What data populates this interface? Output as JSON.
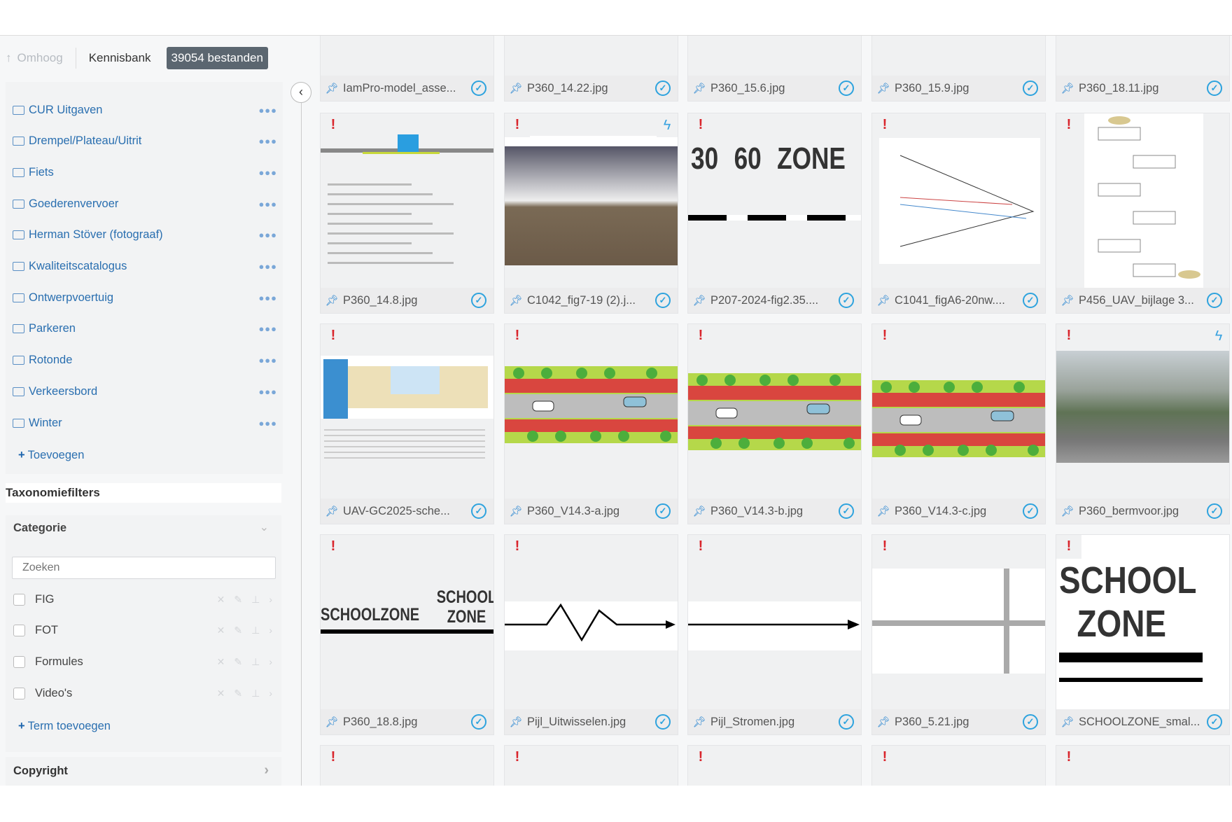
{
  "toolbar": {
    "up_label": "Omhoog",
    "breadcrumb": "Kennisbank",
    "file_count": "39054 bestanden"
  },
  "sidebar": {
    "folders": [
      "CUR Uitgaven",
      "Drempel/Plateau/Uitrit",
      "Fiets",
      "Goederenvervoer",
      "Herman Stöver (fotograaf)",
      "Kwaliteitscatalogus",
      "Ontwerpvoertuig",
      "Parkeren",
      "Rotonde",
      "Verkeersbord",
      "Winter"
    ],
    "add_label": "Toevoegen",
    "taxonomy_title": "Taxonomiefilters",
    "category": {
      "title": "Categorie",
      "search_placeholder": "Zoeken",
      "terms": [
        "FIG",
        "FOT",
        "Formules",
        "Video's"
      ],
      "add_term_label": "Term toevoegen"
    },
    "copyright_label": "Copyright"
  },
  "files": [
    {
      "name": "IamPro-model_asse...",
      "selected": true
    },
    {
      "name": "P360_14.22.jpg",
      "selected": true
    },
    {
      "name": "P360_15.6.jpg",
      "selected": true
    },
    {
      "name": "P360_15.9.jpg",
      "selected": true
    },
    {
      "name": "P360_18.11.jpg",
      "selected": true
    },
    {
      "name": "P360_14.8.jpg",
      "selected": true,
      "flag": "exclamation"
    },
    {
      "name": "C1042_fig7-19 (2).j...",
      "selected": true,
      "flag": "exclamation",
      "badge": "lightning"
    },
    {
      "name": "P207-2024-fig2.35....",
      "selected": true,
      "flag": "exclamation",
      "thumb_text": [
        "30",
        "60",
        "ZONE"
      ]
    },
    {
      "name": "C1041_figA6-20nw....",
      "selected": true,
      "flag": "exclamation"
    },
    {
      "name": "P456_UAV_bijlage 3...",
      "selected": true,
      "flag": "exclamation"
    },
    {
      "name": "UAV-GC2025-sche...",
      "selected": true,
      "flag": "exclamation"
    },
    {
      "name": "P360_V14.3-a.jpg",
      "selected": true,
      "flag": "exclamation"
    },
    {
      "name": "P360_V14.3-b.jpg",
      "selected": true,
      "flag": "exclamation"
    },
    {
      "name": "P360_V14.3-c.jpg",
      "selected": true,
      "flag": "exclamation"
    },
    {
      "name": "P360_bermvoor.jpg",
      "selected": true,
      "flag": "exclamation",
      "badge": "lightning"
    },
    {
      "name": "P360_18.8.jpg",
      "selected": true,
      "flag": "exclamation",
      "thumb_text": [
        "SCHOOLZONE",
        "SCHOOL",
        "ZONE"
      ]
    },
    {
      "name": "Pijl_Uitwisselen.jpg",
      "selected": true,
      "flag": "exclamation"
    },
    {
      "name": "Pijl_Stromen.jpg",
      "selected": true,
      "flag": "exclamation"
    },
    {
      "name": "P360_5.21.jpg",
      "selected": true,
      "flag": "exclamation"
    },
    {
      "name": "SCHOOLZONE_smal...",
      "selected": true,
      "flag": "exclamation",
      "thumb_text": [
        "SCHOOL",
        "ZONE"
      ]
    },
    {
      "flag": "exclamation"
    },
    {
      "flag": "exclamation"
    },
    {
      "flag": "exclamation"
    },
    {
      "flag": "exclamation"
    },
    {
      "flag": "exclamation"
    }
  ],
  "colors": {
    "link": "#2a6fb0",
    "accent": "#2ea3de",
    "warning": "#d9252c",
    "badge": "#5b6670"
  }
}
